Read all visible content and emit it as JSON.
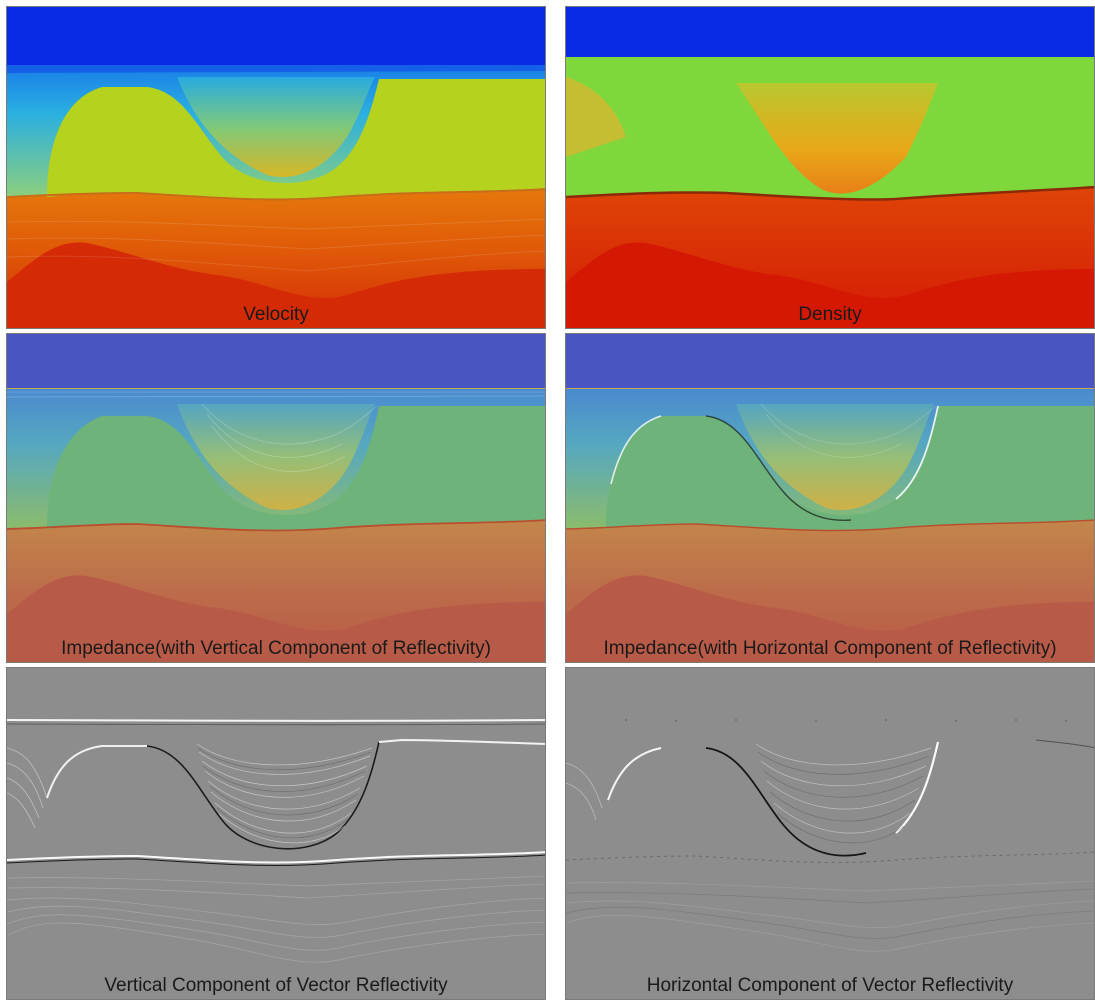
{
  "panels": {
    "velocity": {
      "caption": "Velocity"
    },
    "density": {
      "caption": "Density"
    },
    "impedance_vertical": {
      "caption": "Impedance(with Vertical Component of Reflectivity)"
    },
    "impedance_horizontal": {
      "caption": "Impedance(with Horizontal Component of Reflectivity)"
    },
    "reflectivity_vertical": {
      "caption": "Vertical Component of Vector Reflectivity"
    },
    "reflectivity_horizontal": {
      "caption": "Horizontal Component of Vector Reflectivity"
    }
  },
  "colors": {
    "water": "#0a2ae6",
    "water_muted": "#4a55c4",
    "shallow": "#22a6e8",
    "salt_velocity": "#b4d21e",
    "salt_density": "#7ed83c",
    "salt_muted": "#6db37a",
    "deep_orange": "#e89a12",
    "deep_red": "#d42a06",
    "deep_muted": "#b85a48",
    "gray_background": "#8d8d8d"
  }
}
